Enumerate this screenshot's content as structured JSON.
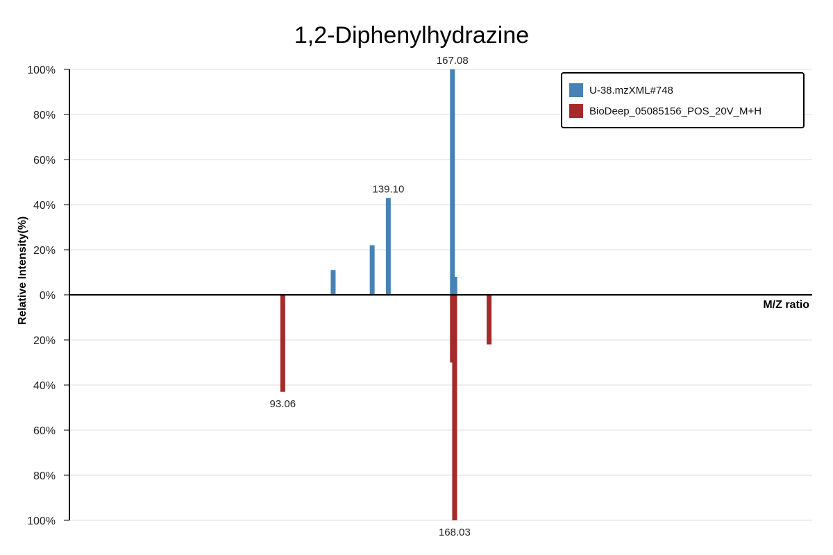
{
  "chart_data": {
    "type": "bar",
    "title": "1,2-Diphenylhydrazine",
    "xlabel": "M/Z ratio",
    "ylabel": "Relative Intensity(%)",
    "ylim": [
      -100,
      100
    ],
    "yticks": [
      "100%",
      "80%",
      "60%",
      "40%",
      "20%",
      "0%",
      "20%",
      "40%",
      "60%",
      "80%",
      "100%"
    ],
    "grid": true,
    "legend_position": "top-right",
    "series": [
      {
        "name": "U-38.mzXML#748",
        "color": "#4682b4",
        "direction": "up",
        "peaks": [
          {
            "mz": 115.05,
            "intensity": 11
          },
          {
            "mz": 132.07,
            "intensity": 22
          },
          {
            "mz": 139.1,
            "intensity": 43,
            "label": "139.10"
          },
          {
            "mz": 167.08,
            "intensity": 100,
            "label": "167.08"
          },
          {
            "mz": 168.1,
            "intensity": 8
          }
        ]
      },
      {
        "name": "BioDeep_05085156_POS_20V_M+H",
        "color": "#a52a2a",
        "direction": "down",
        "peaks": [
          {
            "mz": 93.06,
            "intensity": 43,
            "label": "93.06"
          },
          {
            "mz": 167.08,
            "intensity": 30
          },
          {
            "mz": 168.03,
            "intensity": 100,
            "label": "168.03"
          },
          {
            "mz": 183.07,
            "intensity": 22
          }
        ]
      }
    ]
  }
}
